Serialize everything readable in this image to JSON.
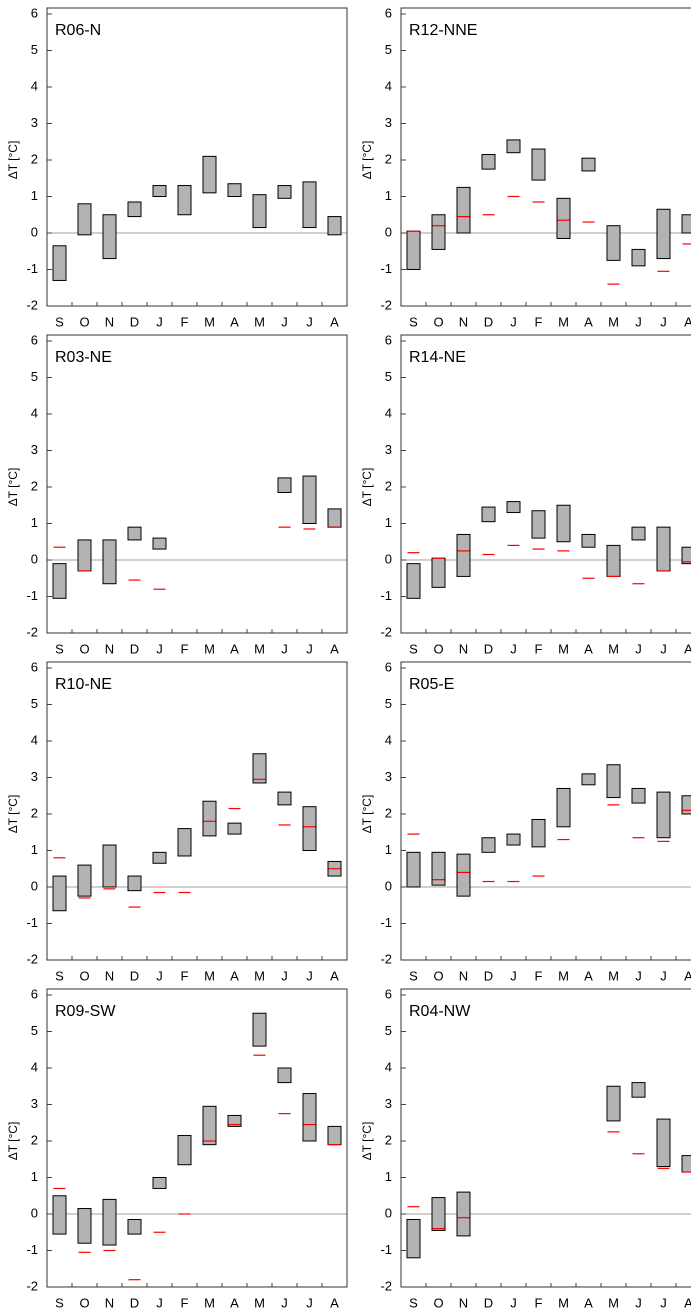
{
  "chart_data": [
    {
      "type": "range-bar",
      "title": "R06-N",
      "ylabel": "ΔT [°C]",
      "categories": [
        "S",
        "O",
        "N",
        "D",
        "J",
        "F",
        "M",
        "A",
        "M",
        "J",
        "J",
        "A"
      ],
      "low": [
        -1.3,
        -0.05,
        -0.7,
        0.45,
        1.0,
        0.5,
        1.1,
        1.0,
        0.15,
        0.95,
        0.15,
        -0.05
      ],
      "high": [
        -0.35,
        0.8,
        0.5,
        0.85,
        1.3,
        1.3,
        2.1,
        1.35,
        1.05,
        1.3,
        1.4,
        0.45
      ],
      "marker": [
        null,
        null,
        null,
        null,
        null,
        null,
        null,
        null,
        null,
        null,
        null,
        null
      ],
      "color": "#b3b3b3",
      "marker_color": "#ff0000",
      "ylim": [
        -2,
        6
      ],
      "yticks": [
        -2,
        -1,
        0,
        1,
        2,
        3,
        4,
        5,
        6
      ]
    },
    {
      "type": "range-bar",
      "title": "R12-NNE",
      "ylabel": "ΔT [°C]",
      "categories": [
        "S",
        "O",
        "N",
        "D",
        "J",
        "F",
        "M",
        "A",
        "M",
        "J",
        "J",
        "A"
      ],
      "low": [
        -1.0,
        -0.45,
        0.0,
        1.75,
        2.2,
        1.45,
        -0.15,
        1.7,
        -0.75,
        -0.9,
        -0.7,
        0.0
      ],
      "high": [
        0.05,
        0.5,
        1.25,
        2.15,
        2.55,
        2.3,
        0.95,
        2.05,
        0.2,
        -0.45,
        0.65,
        0.5
      ],
      "marker": [
        0.05,
        0.2,
        0.45,
        0.5,
        1.0,
        0.85,
        0.35,
        0.3,
        -1.4,
        null,
        -1.05,
        -0.3
      ],
      "color": "#b3b3b3",
      "marker_color": "#ff0000",
      "ylim": [
        -2,
        6
      ],
      "yticks": [
        -2,
        -1,
        0,
        1,
        2,
        3,
        4,
        5,
        6
      ]
    },
    {
      "type": "range-bar",
      "title": "R03-NE",
      "ylabel": "ΔT [°C]",
      "categories": [
        "S",
        "O",
        "N",
        "D",
        "J",
        "F",
        "M",
        "A",
        "M",
        "J",
        "J",
        "A"
      ],
      "low": [
        -1.05,
        -0.3,
        -0.65,
        0.55,
        0.3,
        null,
        null,
        null,
        null,
        1.85,
        1.0,
        0.9
      ],
      "high": [
        -0.1,
        0.55,
        0.55,
        0.9,
        0.6,
        null,
        null,
        null,
        null,
        2.25,
        2.3,
        1.4
      ],
      "marker": [
        0.35,
        -0.3,
        null,
        -0.55,
        -0.8,
        null,
        null,
        null,
        null,
        0.9,
        0.85,
        0.9
      ],
      "color": "#b3b3b3",
      "marker_color": "#ff0000",
      "ylim": [
        -2,
        6
      ],
      "yticks": [
        -2,
        -1,
        0,
        1,
        2,
        3,
        4,
        5,
        6
      ]
    },
    {
      "type": "range-bar",
      "title": "R14-NE",
      "ylabel": "ΔT [°C]",
      "categories": [
        "S",
        "O",
        "N",
        "D",
        "J",
        "F",
        "M",
        "A",
        "M",
        "J",
        "J",
        "A"
      ],
      "low": [
        -1.05,
        -0.75,
        -0.45,
        1.05,
        1.3,
        0.6,
        0.5,
        0.35,
        -0.45,
        0.55,
        -0.3,
        -0.1
      ],
      "high": [
        -0.1,
        0.05,
        0.7,
        1.45,
        1.6,
        1.35,
        1.5,
        0.7,
        0.4,
        0.9,
        0.9,
        0.35
      ],
      "marker": [
        0.2,
        0.05,
        0.25,
        0.15,
        0.4,
        0.3,
        0.25,
        -0.5,
        -0.45,
        -0.65,
        -0.3,
        -0.05
      ],
      "color": "#b3b3b3",
      "marker_color": "#ff0000",
      "ylim": [
        -2,
        6
      ],
      "yticks": [
        -2,
        -1,
        0,
        1,
        2,
        3,
        4,
        5,
        6
      ]
    },
    {
      "type": "range-bar",
      "title": "R10-NE",
      "ylabel": "ΔT [°C]",
      "categories": [
        "S",
        "O",
        "N",
        "D",
        "J",
        "F",
        "M",
        "A",
        "M",
        "J",
        "J",
        "A"
      ],
      "low": [
        -0.65,
        -0.25,
        0.0,
        -0.1,
        0.65,
        0.85,
        1.4,
        1.45,
        2.85,
        2.25,
        1.0,
        0.3
      ],
      "high": [
        0.3,
        0.6,
        1.15,
        0.3,
        0.95,
        1.6,
        2.35,
        1.75,
        3.65,
        2.6,
        2.2,
        0.7
      ],
      "marker": [
        0.8,
        -0.3,
        -0.05,
        -0.55,
        -0.15,
        -0.15,
        1.8,
        2.15,
        2.95,
        1.7,
        1.65,
        0.5
      ],
      "color": "#b3b3b3",
      "marker_color": "#ff0000",
      "ylim": [
        -2,
        6
      ],
      "yticks": [
        -2,
        -1,
        0,
        1,
        2,
        3,
        4,
        5,
        6
      ]
    },
    {
      "type": "range-bar",
      "title": "R05-E",
      "ylabel": "ΔT [°C]",
      "categories": [
        "S",
        "O",
        "N",
        "D",
        "J",
        "F",
        "M",
        "A",
        "M",
        "J",
        "J",
        "A"
      ],
      "low": [
        0.0,
        0.05,
        -0.25,
        0.95,
        1.15,
        1.1,
        1.65,
        2.8,
        2.45,
        2.3,
        1.35,
        2.0
      ],
      "high": [
        0.95,
        0.95,
        0.9,
        1.35,
        1.45,
        1.85,
        2.7,
        3.1,
        3.35,
        2.7,
        2.6,
        2.5
      ],
      "marker": [
        1.45,
        0.2,
        0.4,
        0.15,
        0.15,
        0.3,
        1.3,
        null,
        2.25,
        1.35,
        1.25,
        2.1
      ],
      "color": "#b3b3b3",
      "marker_color": "#ff0000",
      "ylim": [
        -2,
        6
      ],
      "yticks": [
        -2,
        -1,
        0,
        1,
        2,
        3,
        4,
        5,
        6
      ]
    },
    {
      "type": "range-bar",
      "title": "R09-SW",
      "ylabel": "ΔT [°C]",
      "categories": [
        "S",
        "O",
        "N",
        "D",
        "J",
        "F",
        "M",
        "A",
        "M",
        "J",
        "J",
        "A"
      ],
      "low": [
        -0.55,
        -0.8,
        -0.85,
        -0.55,
        0.7,
        1.35,
        1.9,
        2.4,
        4.6,
        3.6,
        2.0,
        1.9
      ],
      "high": [
        0.5,
        0.15,
        0.4,
        -0.15,
        1.0,
        2.15,
        2.95,
        2.7,
        5.5,
        4.0,
        3.3,
        2.4
      ],
      "marker": [
        0.7,
        -1.05,
        -1.0,
        -1.8,
        -0.5,
        0.0,
        2.0,
        2.45,
        4.35,
        2.75,
        2.45,
        1.9
      ],
      "color": "#b3b3b3",
      "marker_color": "#ff0000",
      "ylim": [
        -2,
        6
      ],
      "yticks": [
        -2,
        -1,
        0,
        1,
        2,
        3,
        4,
        5,
        6
      ]
    },
    {
      "type": "range-bar",
      "title": "R04-NW",
      "ylabel": "ΔT [°C]",
      "categories": [
        "S",
        "O",
        "N",
        "D",
        "J",
        "F",
        "M",
        "A",
        "M",
        "J",
        "J",
        "A"
      ],
      "low": [
        -1.2,
        -0.45,
        -0.6,
        null,
        null,
        null,
        null,
        null,
        2.55,
        3.2,
        1.3,
        1.15
      ],
      "high": [
        -0.15,
        0.45,
        0.6,
        null,
        null,
        null,
        null,
        null,
        3.5,
        3.6,
        2.6,
        1.6
      ],
      "marker": [
        0.2,
        -0.4,
        -0.1,
        null,
        null,
        null,
        null,
        null,
        2.25,
        1.65,
        1.25,
        1.15
      ],
      "color": "#b3b3b3",
      "marker_color": "#ff0000",
      "ylim": [
        -2,
        6
      ],
      "yticks": [
        -2,
        -1,
        0,
        1,
        2,
        3,
        4,
        5,
        6
      ]
    }
  ]
}
